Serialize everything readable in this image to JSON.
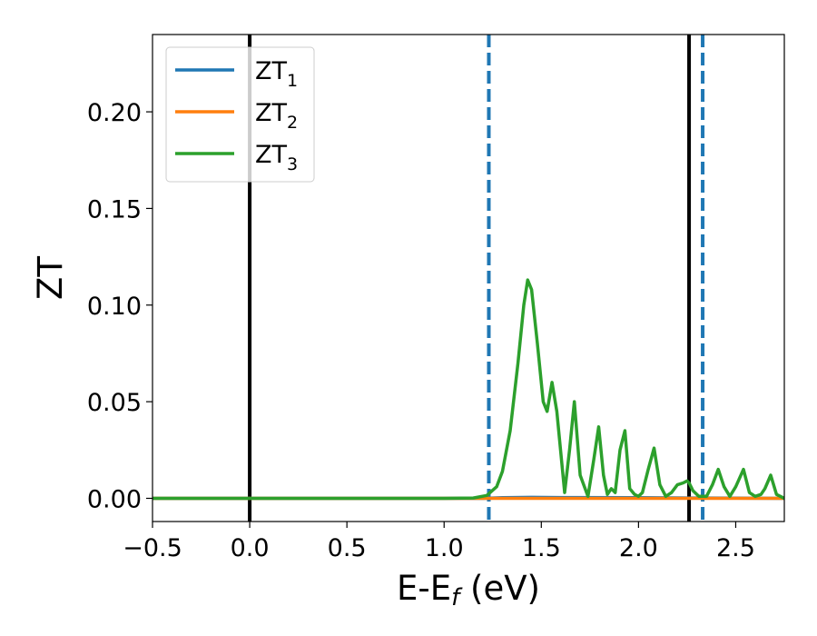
{
  "chart_data": {
    "type": "line",
    "xlabel_main": "E-E",
    "xlabel_sub": "f",
    "xlabel_unit": " (eV)",
    "ylabel": "ZT",
    "xlim": [
      -0.5,
      2.75
    ],
    "ylim": [
      -0.012,
      0.24
    ],
    "xticks": [
      -0.5,
      0.0,
      0.5,
      1.0,
      1.5,
      2.0,
      2.5
    ],
    "xtick_labels": [
      "−0.5",
      "0.0",
      "0.5",
      "1.0",
      "1.5",
      "2.0",
      "2.5"
    ],
    "yticks": [
      0.0,
      0.05,
      0.1,
      0.15,
      0.2
    ],
    "ytick_labels": [
      "0.00",
      "0.05",
      "0.10",
      "0.15",
      "0.20"
    ],
    "grid": false,
    "legend_position": "upper-left",
    "vlines_solid": [
      0.0,
      2.26
    ],
    "vlines_dashed": [
      1.23,
      2.33
    ],
    "vline_solid_color": "#000000",
    "vline_dashed_color": "#1f77b4",
    "series": [
      {
        "name": "ZT",
        "name_sub": "1",
        "color": "#1f77b4",
        "x": [
          -0.5,
          1.2,
          1.3,
          1.45,
          1.6,
          2.0,
          2.3,
          2.5,
          2.75
        ],
        "y": [
          0,
          0,
          0.0003,
          0.0005,
          0.0004,
          0.0003,
          0.0002,
          0.0001,
          0
        ]
      },
      {
        "name": "ZT",
        "name_sub": "2",
        "color": "#ff7f0e",
        "x": [
          -0.5,
          2.75
        ],
        "y": [
          0,
          0
        ]
      },
      {
        "name": "ZT",
        "name_sub": "3",
        "color": "#2ca02c",
        "x": [
          -0.5,
          1.0,
          1.15,
          1.22,
          1.27,
          1.3,
          1.34,
          1.38,
          1.41,
          1.43,
          1.45,
          1.48,
          1.51,
          1.53,
          1.555,
          1.58,
          1.62,
          1.645,
          1.67,
          1.7,
          1.74,
          1.77,
          1.795,
          1.82,
          1.84,
          1.86,
          1.88,
          1.905,
          1.93,
          1.955,
          1.98,
          2.0,
          2.02,
          2.05,
          2.08,
          2.11,
          2.14,
          2.17,
          2.2,
          2.23,
          2.25,
          2.26,
          2.28,
          2.31,
          2.35,
          2.38,
          2.41,
          2.44,
          2.47,
          2.5,
          2.54,
          2.57,
          2.6,
          2.63,
          2.65,
          2.68,
          2.71,
          2.75
        ],
        "y": [
          0,
          0,
          0.0002,
          0.0015,
          0.006,
          0.014,
          0.035,
          0.07,
          0.1,
          0.113,
          0.108,
          0.08,
          0.05,
          0.045,
          0.06,
          0.045,
          0.003,
          0.025,
          0.05,
          0.012,
          0.001,
          0.02,
          0.037,
          0.012,
          0.002,
          0.005,
          0.003,
          0.025,
          0.035,
          0.005,
          0.002,
          0.001,
          0.003,
          0.015,
          0.026,
          0.007,
          0.001,
          0.003,
          0.007,
          0.008,
          0.009,
          0.008,
          0.004,
          0.001,
          0.001,
          0.007,
          0.015,
          0.006,
          0.001,
          0.006,
          0.015,
          0.003,
          0.001,
          0.002,
          0.005,
          0.012,
          0.002,
          0
        ]
      }
    ]
  }
}
